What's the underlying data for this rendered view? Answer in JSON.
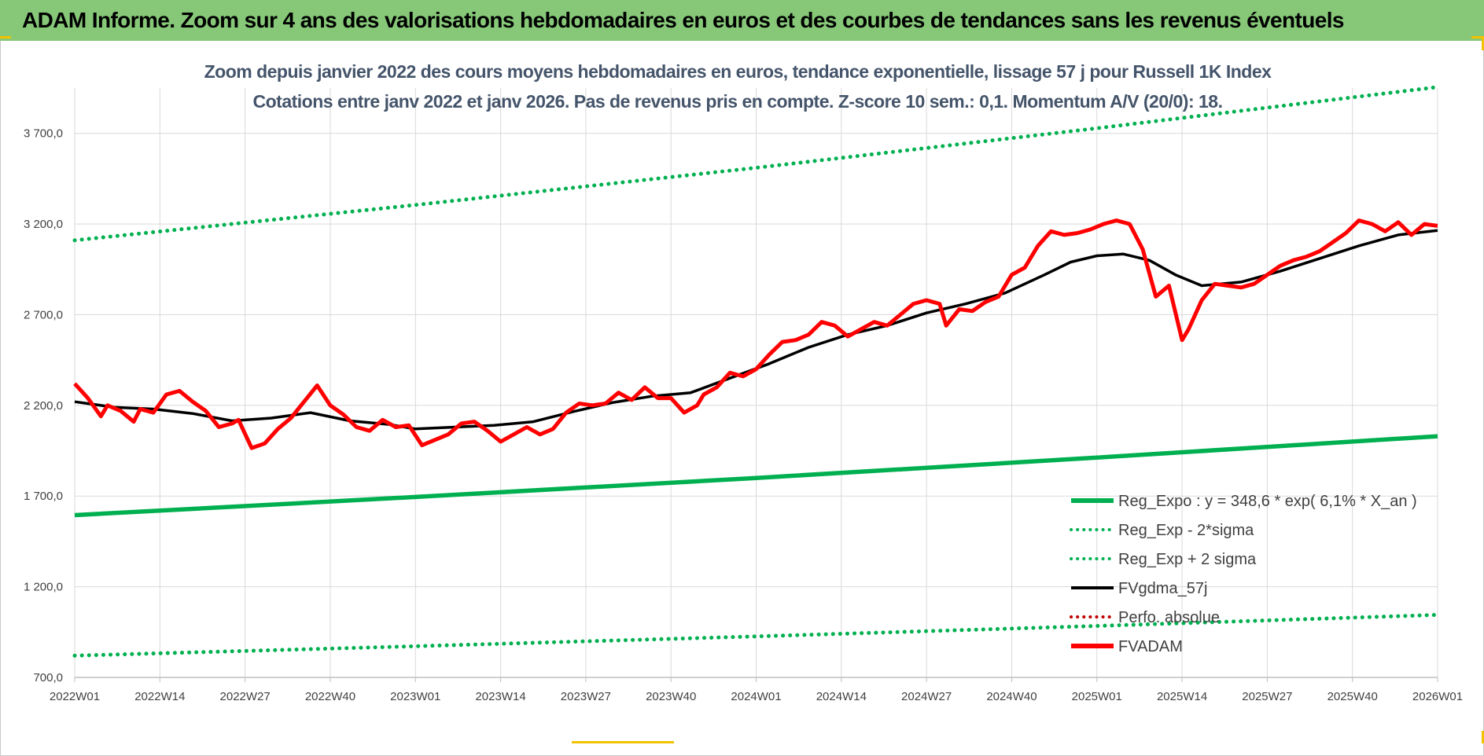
{
  "banner": {
    "title": "ADAM Informe. Zoom sur 4 ans des valorisations hebdomadaires en euros et des courbes de tendances sans les revenus éventuels"
  },
  "colors": {
    "banner_bg": "#86c878",
    "regression": "#00b050",
    "smooth": "#000000",
    "fvadam": "#ff0000",
    "perfo": "#c00000",
    "title_text": "#44546a"
  },
  "chart_data": {
    "type": "line",
    "title": "Zoom depuis janvier 2022 des cours moyens hebdomadaires en euros, tendance exponentielle, lissage 57 j pour Russell 1K Index",
    "subtitle": "Cotations entre janv 2022 et janv 2026. Pas de revenus pris en compte. Z-score 10 sem.: 0,1. Momentum A/V (20/0): 18.",
    "xlabel": "",
    "ylabel": "",
    "ylim": [
      700,
      3950
    ],
    "y_ticks": [
      "700,0",
      "1 200,0",
      "1 700,0",
      "2 200,0",
      "2 700,0",
      "3 200,0",
      "3 700,0"
    ],
    "y_tick_values": [
      700,
      1200,
      1700,
      2200,
      2700,
      3200,
      3700
    ],
    "x_ticks": [
      "2022W01",
      "2022W14",
      "2022W27",
      "2022W40",
      "2023W01",
      "2023W14",
      "2023W27",
      "2023W40",
      "2024W01",
      "2024W14",
      "2024W27",
      "2024W40",
      "2025W01",
      "2025W14",
      "2025W27",
      "2025W40",
      "2026W01"
    ],
    "x_tick_weeks": [
      0,
      13,
      26,
      39,
      52,
      65,
      78,
      91,
      104,
      117,
      130,
      143,
      156,
      169,
      182,
      195,
      208
    ],
    "x_range_weeks": [
      0,
      208
    ],
    "grid": true,
    "legend_position": "bottom-right",
    "series": [
      {
        "name": "Reg_Expo : y = 348,6 * exp( 6,1% *  X_an )",
        "style": "solid",
        "color": "#00b050",
        "x": [
          0,
          52,
          104,
          156,
          208
        ],
        "values": [
          1595,
          1695,
          1800,
          1912,
          2030
        ]
      },
      {
        "name": "Reg_Exp - 2*sigma",
        "style": "dotted",
        "color": "#00b050",
        "x": [
          0,
          52,
          104,
          156,
          208
        ],
        "values": [
          820,
          872,
          926,
          984,
          1045
        ]
      },
      {
        "name": "Reg_Exp + 2 sigma",
        "style": "dotted",
        "color": "#00b050",
        "x": [
          0,
          52,
          104,
          156,
          208
        ],
        "values": [
          3110,
          3305,
          3510,
          3728,
          3955
        ]
      },
      {
        "name": "FVgdma_57j",
        "style": "solid",
        "color": "#000000",
        "x": [
          0,
          6,
          12,
          18,
          24,
          30,
          36,
          42,
          48,
          52,
          58,
          64,
          70,
          76,
          82,
          88,
          94,
          100,
          106,
          112,
          118,
          124,
          130,
          136,
          142,
          148,
          152,
          156,
          160,
          164,
          168,
          172,
          178,
          184,
          190,
          196,
          202,
          208
        ],
        "values": [
          2220,
          2190,
          2180,
          2155,
          2115,
          2130,
          2160,
          2115,
          2095,
          2070,
          2080,
          2090,
          2110,
          2165,
          2215,
          2250,
          2270,
          2350,
          2430,
          2520,
          2590,
          2640,
          2710,
          2760,
          2820,
          2920,
          2990,
          3025,
          3035,
          3000,
          2920,
          2860,
          2880,
          2940,
          3010,
          3080,
          3140,
          3165
        ]
      },
      {
        "name": "Perfo. absolue",
        "style": "dotted",
        "color": "#c00000",
        "x": [],
        "values": []
      },
      {
        "name": "FVADAM",
        "style": "solid-thick",
        "color": "#ff0000",
        "x": [
          0,
          2,
          4,
          5,
          7,
          9,
          10,
          12,
          14,
          16,
          18,
          20,
          22,
          24,
          25,
          27,
          29,
          31,
          33,
          35,
          37,
          39,
          41,
          43,
          45,
          47,
          49,
          51,
          53,
          55,
          57,
          59,
          61,
          63,
          65,
          67,
          69,
          71,
          73,
          75,
          77,
          79,
          81,
          83,
          85,
          87,
          89,
          91,
          93,
          95,
          96,
          98,
          100,
          102,
          104,
          106,
          108,
          110,
          112,
          114,
          116,
          118,
          120,
          122,
          124,
          126,
          128,
          130,
          132,
          133,
          135,
          137,
          139,
          141,
          143,
          145,
          147,
          149,
          151,
          153,
          155,
          157,
          159,
          161,
          163,
          165,
          167,
          169,
          170,
          172,
          174,
          176,
          178,
          180,
          182,
          184,
          186,
          188,
          190,
          192,
          194,
          196,
          198,
          200,
          202,
          204,
          206,
          208
        ],
        "values": [
          2320,
          2240,
          2140,
          2200,
          2170,
          2110,
          2180,
          2160,
          2260,
          2280,
          2220,
          2170,
          2080,
          2100,
          2120,
          1965,
          1990,
          2070,
          2130,
          2220,
          2310,
          2200,
          2150,
          2080,
          2060,
          2120,
          2080,
          2090,
          1980,
          2010,
          2040,
          2100,
          2110,
          2060,
          2000,
          2040,
          2080,
          2040,
          2070,
          2160,
          2210,
          2200,
          2210,
          2270,
          2230,
          2300,
          2240,
          2240,
          2160,
          2200,
          2260,
          2300,
          2380,
          2360,
          2400,
          2480,
          2550,
          2560,
          2590,
          2660,
          2640,
          2580,
          2620,
          2660,
          2640,
          2700,
          2760,
          2780,
          2760,
          2640,
          2730,
          2720,
          2770,
          2800,
          2920,
          2960,
          3080,
          3160,
          3140,
          3150,
          3170,
          3200,
          3220,
          3200,
          3060,
          2800,
          2860,
          2560,
          2620,
          2780,
          2870,
          2860,
          2850,
          2870,
          2920,
          2970,
          3000,
          3020,
          3050,
          3100,
          3150,
          3220,
          3200,
          3160,
          3210,
          3140,
          3200,
          3190
        ]
      }
    ]
  }
}
